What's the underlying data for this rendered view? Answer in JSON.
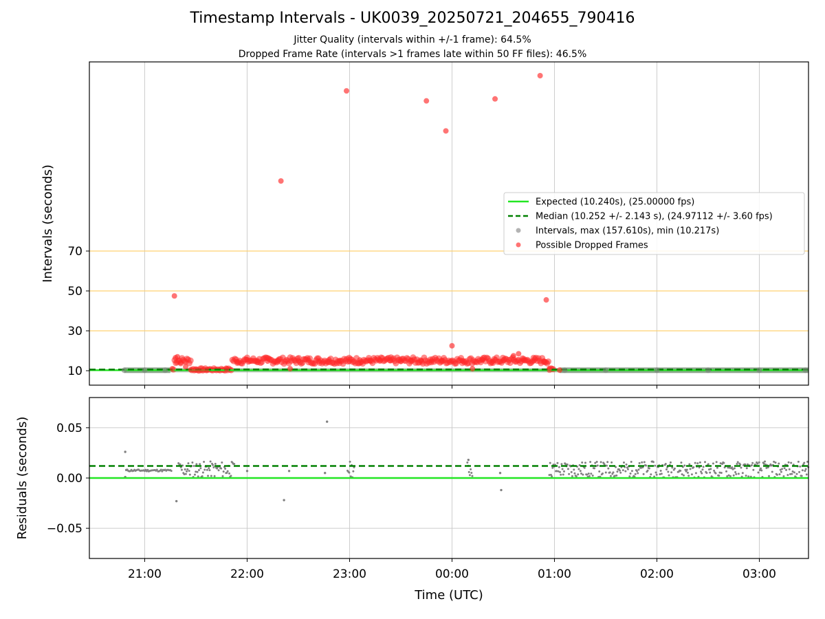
{
  "title": "Timestamp Intervals - UK0039_20250721_204655_790416",
  "subtitle_lines": [
    "Jitter Quality (intervals within +/-1 frame): 64.5%",
    "Dropped Frame Rate (intervals >1 frames late within 50 FF files): 46.5%"
  ],
  "colors": {
    "expected": "#22e622",
    "median": "#008000",
    "intervals": "#808080",
    "dropped": "#ff2a2a",
    "threshold": "#ffd070",
    "grid": "#cccccc"
  },
  "chart_data": [
    {
      "type": "scatter",
      "panel": "top",
      "xlabel": "",
      "ylabel": "Intervals (seconds)",
      "x_tick_labels": [
        "21:00",
        "22:00",
        "23:00",
        "00:00",
        "01:00",
        "02:00",
        "03:00"
      ],
      "x_ticks_hours": [
        21,
        22,
        23,
        24,
        25,
        26,
        27
      ],
      "xlim_hours": [
        20.46,
        27.48
      ],
      "y_tick_values": [
        10,
        30,
        50,
        70
      ],
      "y_axis_note": "non-linear (compressed above ~70 s)",
      "threshold_lines": [
        30,
        50,
        70
      ],
      "expected_line": 10.24,
      "median_line": 10.252,
      "legend": {
        "position": "center-right",
        "entries": [
          "Expected (10.240s), (25.00000 fps)",
          "Median (10.252 +/- 2.143 s), (24.97112 +/- 3.60 fps)",
          "Intervals, max (157.610s), min (10.217s)",
          "Possible Dropped Frames"
        ]
      },
      "series": [
        {
          "name": "Possible Dropped Frames",
          "points": [
            [
              21.29,
              47.5
            ],
            [
              22.33,
              105
            ],
            [
              22.97,
              150
            ],
            [
              23.75,
              145
            ],
            [
              23.94,
              130
            ],
            [
              24.42,
              146
            ],
            [
              24.86,
              157.6
            ],
            [
              24.92,
              45.5
            ],
            [
              24.0,
              22.5
            ],
            [
              21.3,
              16.5
            ],
            [
              21.32,
              17
            ],
            [
              21.27,
              11
            ],
            [
              21.35,
              14
            ],
            [
              21.4,
              12
            ],
            [
              21.45,
              10.5
            ],
            [
              21.5,
              10.3
            ],
            [
              21.55,
              10.2
            ],
            [
              21.6,
              10.4
            ],
            [
              21.8,
              11
            ],
            [
              21.9,
              14.5
            ],
            [
              22.0,
              15.5
            ],
            [
              22.1,
              15
            ],
            [
              22.2,
              14.8
            ],
            [
              22.3,
              15.2
            ],
            [
              22.42,
              11
            ],
            [
              22.5,
              15
            ],
            [
              22.6,
              15.3
            ],
            [
              22.7,
              14.7
            ],
            [
              22.8,
              15.5
            ],
            [
              22.9,
              15
            ],
            [
              23.0,
              14.6
            ],
            [
              23.1,
              15.4
            ],
            [
              23.2,
              14.9
            ],
            [
              23.3,
              15.2
            ],
            [
              23.4,
              15
            ],
            [
              23.5,
              14.8
            ],
            [
              23.6,
              15.3
            ],
            [
              23.7,
              15.1
            ],
            [
              23.8,
              14.9
            ],
            [
              23.9,
              15.2
            ],
            [
              24.1,
              15
            ],
            [
              24.2,
              11
            ],
            [
              24.3,
              15.4
            ],
            [
              24.4,
              14.8
            ],
            [
              24.5,
              15
            ],
            [
              24.6,
              17.5
            ],
            [
              24.65,
              18.5
            ],
            [
              24.7,
              15.3
            ],
            [
              24.8,
              15
            ],
            [
              24.9,
              14.8
            ],
            [
              24.95,
              11
            ],
            [
              25.05,
              10.3
            ]
          ]
        },
        {
          "name": "Intervals, max (157.610s), min (10.217s)",
          "points": [
            [
              20.8,
              10.24
            ],
            [
              21.0,
              10.24
            ],
            [
              21.2,
              10.24
            ],
            [
              25.1,
              10.24
            ],
            [
              25.5,
              10.25
            ],
            [
              26.0,
              10.25
            ],
            [
              26.5,
              10.25
            ],
            [
              27.0,
              10.25
            ],
            [
              27.45,
              10.25
            ]
          ]
        }
      ]
    },
    {
      "type": "scatter",
      "panel": "bottom",
      "xlabel": "Time (UTC)",
      "ylabel": "Residuals (seconds)",
      "x_tick_labels": [
        "21:00",
        "22:00",
        "23:00",
        "00:00",
        "01:00",
        "02:00",
        "03:00"
      ],
      "x_ticks_hours": [
        21,
        22,
        23,
        24,
        25,
        26,
        27
      ],
      "xlim_hours": [
        20.46,
        27.48
      ],
      "y_tick_values": [
        0.05,
        0.0,
        -0.05
      ],
      "y_tick_labels": [
        "0.05",
        "0.00",
        "−0.05"
      ],
      "ylim": [
        -0.08,
        0.08
      ],
      "expected_line": 0.0,
      "median_line": 0.012,
      "series": [
        {
          "name": "Residuals",
          "points": [
            [
              20.81,
              0.026
            ],
            [
              20.82,
              0.008
            ],
            [
              20.81,
              0.001
            ],
            [
              21.31,
              -0.023
            ],
            [
              22.36,
              -0.022
            ],
            [
              22.78,
              0.056
            ],
            [
              24.48,
              -0.012
            ],
            [
              24.16,
              0.018
            ],
            [
              22.0,
              0.007
            ],
            [
              22.41,
              0.007
            ],
            [
              22.76,
              0.005
            ],
            [
              24.47,
              0.005
            ]
          ]
        }
      ]
    }
  ]
}
